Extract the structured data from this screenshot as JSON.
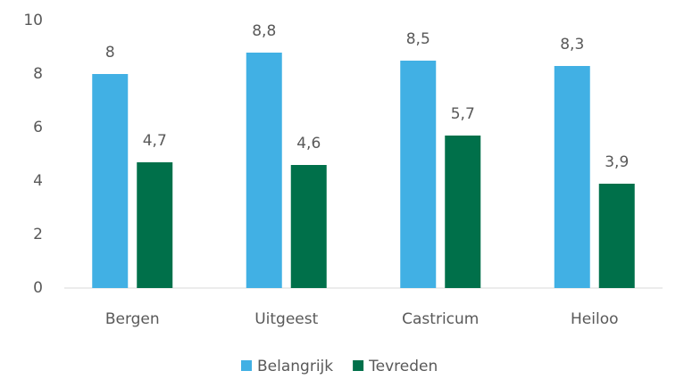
{
  "chart_data": {
    "type": "bar",
    "categories": [
      "Bergen",
      "Uitgeest",
      "Castricum",
      "Heiloo"
    ],
    "series": [
      {
        "name": "Belangrijk",
        "color": "#41b0e4",
        "values": [
          8,
          8.8,
          8.5,
          8.3
        ],
        "value_labels": [
          "8",
          "8,8",
          "8,5",
          "8,3"
        ]
      },
      {
        "name": "Tevreden",
        "color": "#00704a",
        "values": [
          4.7,
          4.6,
          5.7,
          3.9
        ],
        "value_labels": [
          "4,7",
          "4,6",
          "5,7",
          "3,9"
        ]
      }
    ],
    "ylim": [
      0,
      10
    ],
    "yticks": [
      0,
      2,
      4,
      6,
      8,
      10
    ],
    "grid": false,
    "legend": "bottom"
  }
}
